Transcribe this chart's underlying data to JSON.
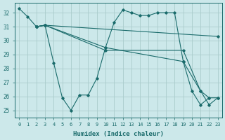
{
  "xlabel": "Humidex (Indice chaleur)",
  "bg_color": "#cce8ea",
  "grid_color": "#aacccc",
  "line_color": "#1a6b6b",
  "xlim": [
    -0.5,
    23.5
  ],
  "ylim": [
    24.5,
    32.7
  ],
  "yticks": [
    25,
    26,
    27,
    28,
    29,
    30,
    31,
    32
  ],
  "xticks": [
    0,
    1,
    2,
    3,
    4,
    5,
    6,
    7,
    8,
    9,
    10,
    11,
    12,
    13,
    14,
    15,
    16,
    17,
    18,
    19,
    20,
    21,
    22,
    23
  ],
  "lines": [
    {
      "x": [
        0,
        1,
        2,
        3,
        4,
        5,
        6,
        7,
        8,
        9,
        10,
        11,
        12,
        13,
        14,
        15,
        16,
        17,
        18,
        19,
        20,
        21,
        22
      ],
      "y": [
        32.3,
        31.7,
        31.0,
        31.1,
        28.4,
        25.9,
        25.0,
        26.1,
        26.1,
        27.3,
        29.5,
        31.3,
        32.2,
        32.0,
        31.8,
        31.8,
        32.0,
        32.0,
        32.0,
        28.5,
        26.4,
        25.4,
        25.9
      ]
    },
    {
      "x": [
        2,
        3,
        23
      ],
      "y": [
        31.0,
        31.1,
        30.3
      ]
    },
    {
      "x": [
        2,
        3,
        10,
        19,
        21,
        22,
        23
      ],
      "y": [
        31.0,
        31.1,
        29.5,
        28.5,
        26.4,
        25.9,
        25.9
      ]
    },
    {
      "x": [
        2,
        3,
        10,
        19,
        21,
        22,
        23
      ],
      "y": [
        31.0,
        31.1,
        29.3,
        29.3,
        26.4,
        25.4,
        25.9
      ]
    }
  ]
}
